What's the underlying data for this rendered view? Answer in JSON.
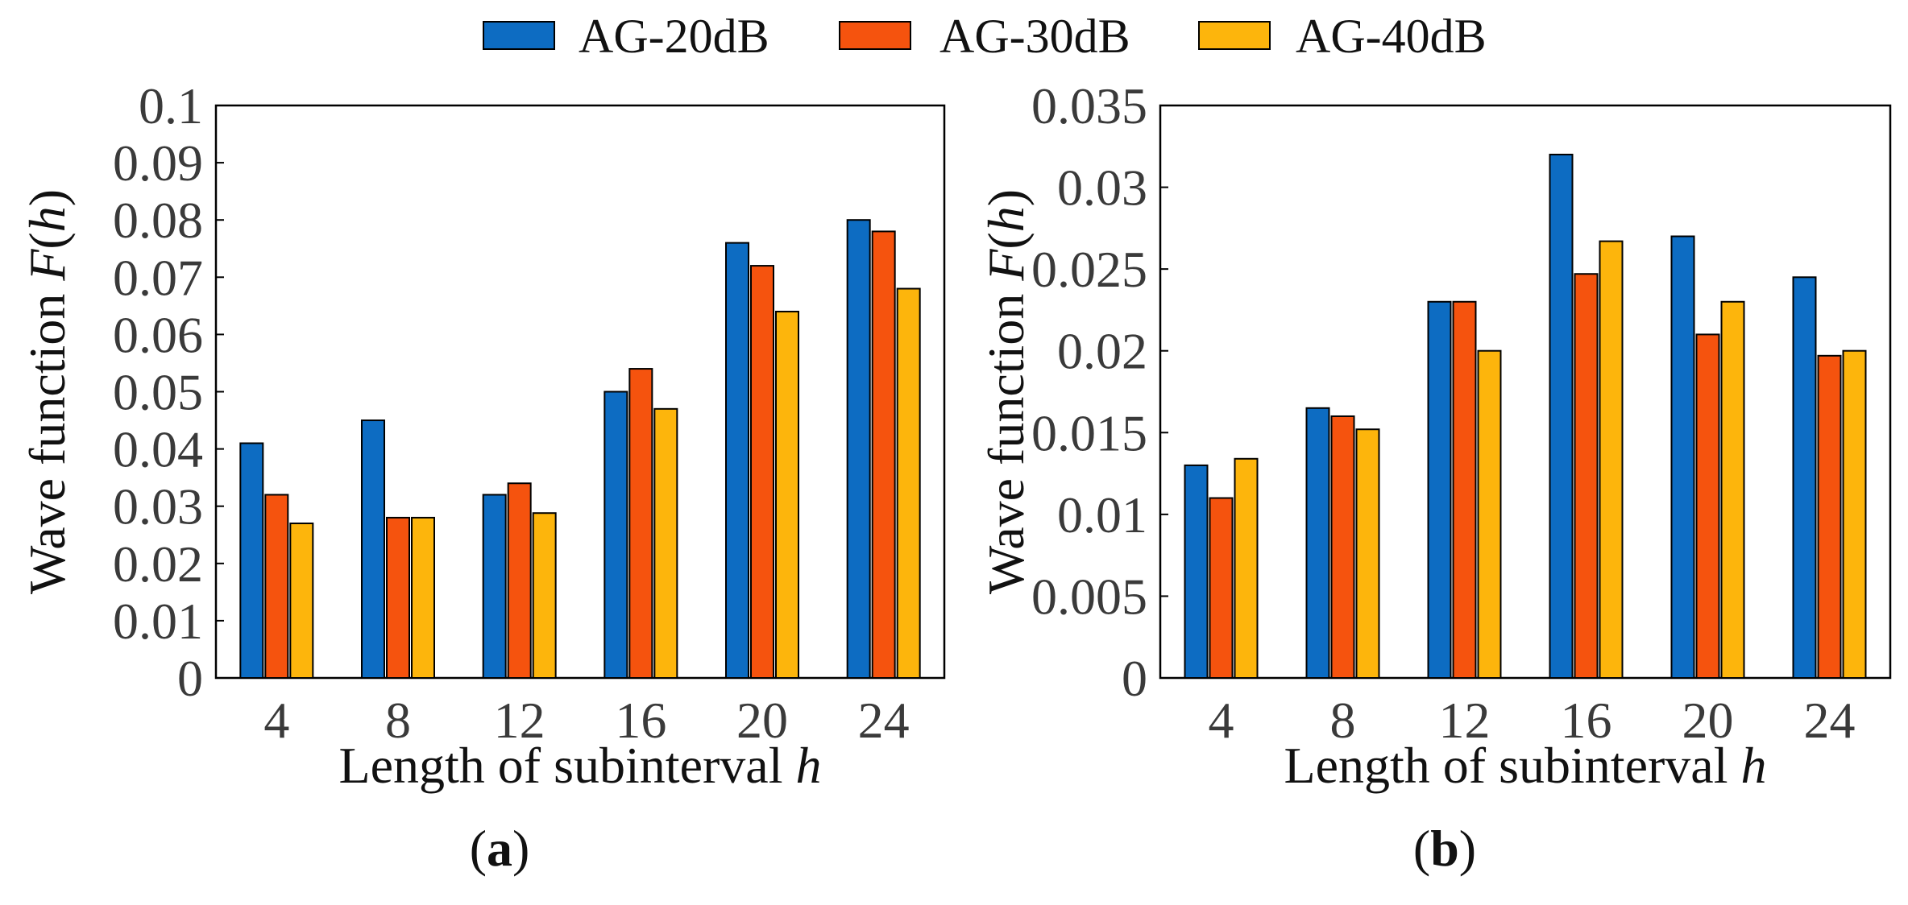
{
  "legend": {
    "items": [
      {
        "label": "AG-20dB",
        "color": "#0d6cc2"
      },
      {
        "label": "AG-30dB",
        "color": "#f5530e"
      },
      {
        "label": "AG-40dB",
        "color": "#fdb50c"
      }
    ]
  },
  "chart_data": [
    {
      "type": "bar",
      "panel_prefix": "(",
      "panel_letter": "a",
      "panel_suffix": ")",
      "xlabel_prefix": "Length of subinterval ",
      "xlabel_var": "h",
      "ylabel_prefix": "Wave function ",
      "ylabel_func": "F",
      "ylabel_open": "(",
      "ylabel_var": "h",
      "ylabel_close": ")",
      "categories": [
        "4",
        "8",
        "12",
        "16",
        "20",
        "24"
      ],
      "ylim": [
        0,
        0.1
      ],
      "yticks": [
        "0",
        "0.01",
        "0.02",
        "0.03",
        "0.04",
        "0.05",
        "0.06",
        "0.07",
        "0.08",
        "0.09",
        "0.1"
      ],
      "series": [
        {
          "name": "AG-20dB",
          "values": [
            0.041,
            0.045,
            0.032,
            0.05,
            0.076,
            0.08
          ]
        },
        {
          "name": "AG-30dB",
          "values": [
            0.032,
            0.028,
            0.034,
            0.054,
            0.072,
            0.078
          ]
        },
        {
          "name": "AG-40dB",
          "values": [
            0.027,
            0.028,
            0.0288,
            0.047,
            0.064,
            0.068
          ]
        }
      ]
    },
    {
      "type": "bar",
      "panel_prefix": "(",
      "panel_letter": "b",
      "panel_suffix": ")",
      "xlabel_prefix": "Length of subinterval ",
      "xlabel_var": "h",
      "ylabel_prefix": "Wave function ",
      "ylabel_func": "F",
      "ylabel_open": "(",
      "ylabel_var": "h",
      "ylabel_close": ")",
      "categories": [
        "4",
        "8",
        "12",
        "16",
        "20",
        "24"
      ],
      "ylim": [
        0,
        0.035
      ],
      "yticks": [
        "0",
        "0.005",
        "0.01",
        "0.015",
        "0.02",
        "0.025",
        "0.03",
        "0.035"
      ],
      "series": [
        {
          "name": "AG-20dB",
          "values": [
            0.013,
            0.0165,
            0.023,
            0.032,
            0.027,
            0.0245
          ]
        },
        {
          "name": "AG-30dB",
          "values": [
            0.011,
            0.016,
            0.023,
            0.0247,
            0.021,
            0.0197
          ]
        },
        {
          "name": "AG-40dB",
          "values": [
            0.0134,
            0.0152,
            0.02,
            0.0267,
            0.023,
            0.02
          ]
        }
      ]
    }
  ]
}
